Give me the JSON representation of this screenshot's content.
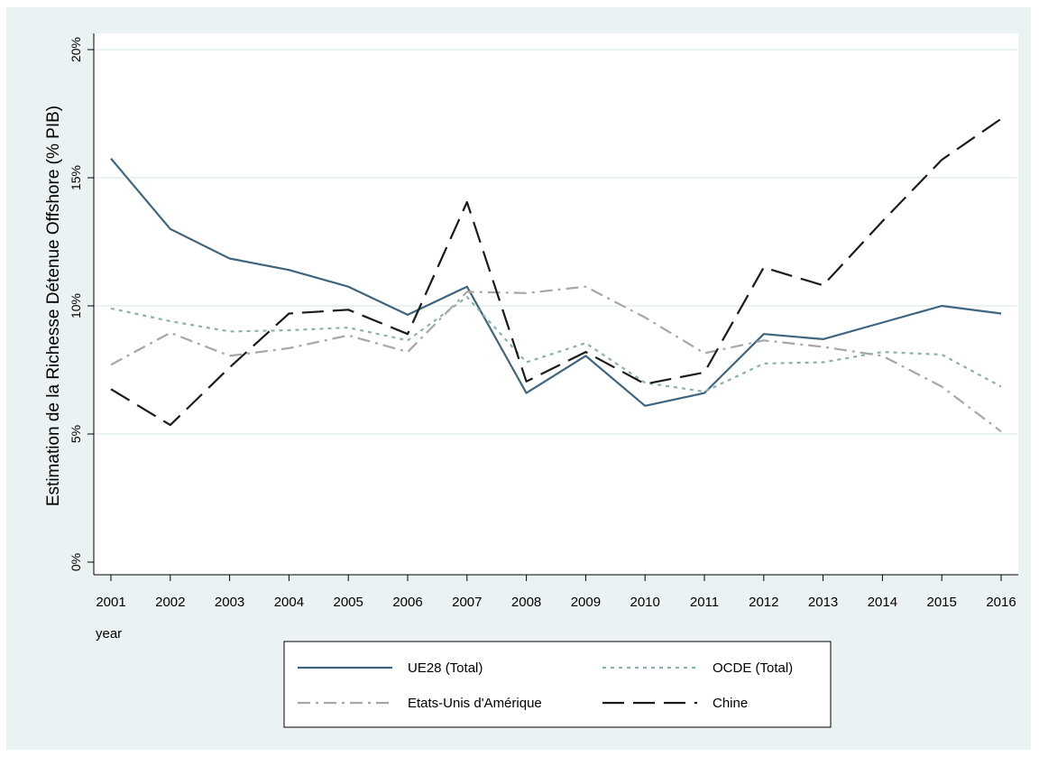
{
  "chart_data": {
    "type": "line",
    "title": "",
    "xlabel": "year",
    "ylabel": "Estimation de la Richesse Détenue Offshore (% PIB)",
    "x": [
      2001,
      2002,
      2003,
      2004,
      2005,
      2006,
      2007,
      2008,
      2009,
      2010,
      2011,
      2012,
      2013,
      2014,
      2015,
      2016
    ],
    "xlim": [
      2001,
      2016
    ],
    "ylim": [
      0,
      20
    ],
    "yticks": [
      0,
      5,
      10,
      15,
      20
    ],
    "ytick_labels": [
      "0%",
      "5%",
      "10%",
      "15%",
      "20%"
    ],
    "xtick_labels": [
      "2001",
      "2002",
      "2003",
      "2004",
      "2005",
      "2006",
      "2007",
      "2008",
      "2009",
      "2010",
      "2011",
      "2012",
      "2013",
      "2014",
      "2015",
      "2016"
    ],
    "grid": true,
    "legend_position": "bottom",
    "series": [
      {
        "name": "UE28 (Total)",
        "color": "#3e6580",
        "dash": "solid",
        "values": [
          15.75,
          13.0,
          11.85,
          11.4,
          10.75,
          9.65,
          10.75,
          6.6,
          8.05,
          6.1,
          6.6,
          8.9,
          8.7,
          9.35,
          10.0,
          9.7
        ]
      },
      {
        "name": "OCDE (Total)",
        "color": "#8bb2aa",
        "dash": "short-dash",
        "values": [
          9.9,
          9.4,
          9.0,
          9.05,
          9.15,
          8.65,
          10.35,
          7.8,
          8.55,
          7.0,
          6.65,
          7.75,
          7.8,
          8.2,
          8.1,
          6.85
        ]
      },
      {
        "name": "Etats-Unis d'Amérique",
        "color": "#a7a7a7",
        "dash": "dash-dot",
        "values": [
          7.7,
          8.95,
          8.05,
          8.35,
          8.85,
          8.2,
          10.55,
          10.5,
          10.75,
          9.55,
          8.15,
          8.65,
          8.4,
          8.05,
          6.85,
          5.1
        ]
      },
      {
        "name": "Chine",
        "color": "#1b1b1b",
        "dash": "long-dash",
        "values": [
          6.75,
          5.35,
          7.6,
          9.7,
          9.85,
          8.9,
          14.05,
          7.05,
          8.2,
          6.95,
          7.4,
          11.5,
          10.8,
          13.3,
          15.7,
          17.3
        ]
      }
    ]
  }
}
